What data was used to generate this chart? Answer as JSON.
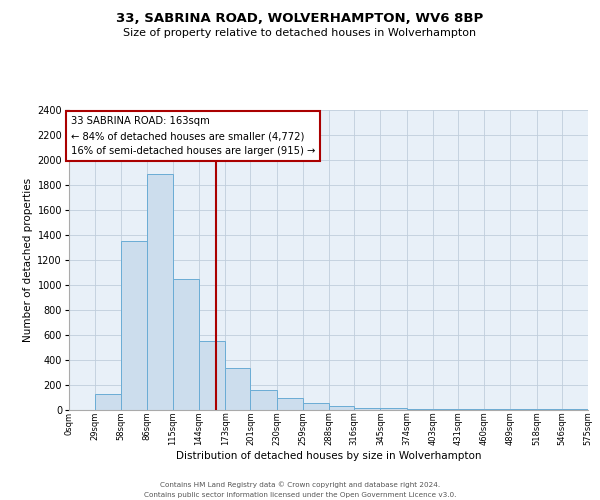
{
  "title": "33, SABRINA ROAD, WOLVERHAMPTON, WV6 8BP",
  "subtitle": "Size of property relative to detached houses in Wolverhampton",
  "xlabel": "Distribution of detached houses by size in Wolverhampton",
  "ylabel": "Number of detached properties",
  "bin_edges": [
    0,
    29,
    58,
    86,
    115,
    144,
    173,
    201,
    230,
    259,
    288,
    316,
    345,
    374,
    403,
    431,
    460,
    489,
    518,
    546,
    575
  ],
  "bin_counts": [
    0,
    125,
    1350,
    1890,
    1050,
    550,
    335,
    160,
    100,
    60,
    30,
    20,
    15,
    10,
    8,
    5,
    10,
    5,
    5,
    10
  ],
  "bar_color": "#ccdded",
  "bar_edge_color": "#6aacd5",
  "property_size": 163,
  "vertical_line_color": "#aa0000",
  "annotation_text": "33 SABRINA ROAD: 163sqm\n← 84% of detached houses are smaller (4,772)\n16% of semi-detached houses are larger (915) →",
  "annotation_box_color": "#ffffff",
  "annotation_box_edge_color": "#aa0000",
  "ylim": [
    0,
    2400
  ],
  "yticks": [
    0,
    200,
    400,
    600,
    800,
    1000,
    1200,
    1400,
    1600,
    1800,
    2000,
    2200,
    2400
  ],
  "tick_labels": [
    "0sqm",
    "29sqm",
    "58sqm",
    "86sqm",
    "115sqm",
    "144sqm",
    "173sqm",
    "201sqm",
    "230sqm",
    "259sqm",
    "288sqm",
    "316sqm",
    "345sqm",
    "374sqm",
    "403sqm",
    "431sqm",
    "460sqm",
    "489sqm",
    "518sqm",
    "546sqm",
    "575sqm"
  ],
  "background_color": "#ffffff",
  "plot_bg_color": "#e8f0f8",
  "grid_color": "#c0cedc",
  "footer_line1": "Contains HM Land Registry data © Crown copyright and database right 2024.",
  "footer_line2": "Contains public sector information licensed under the Open Government Licence v3.0."
}
